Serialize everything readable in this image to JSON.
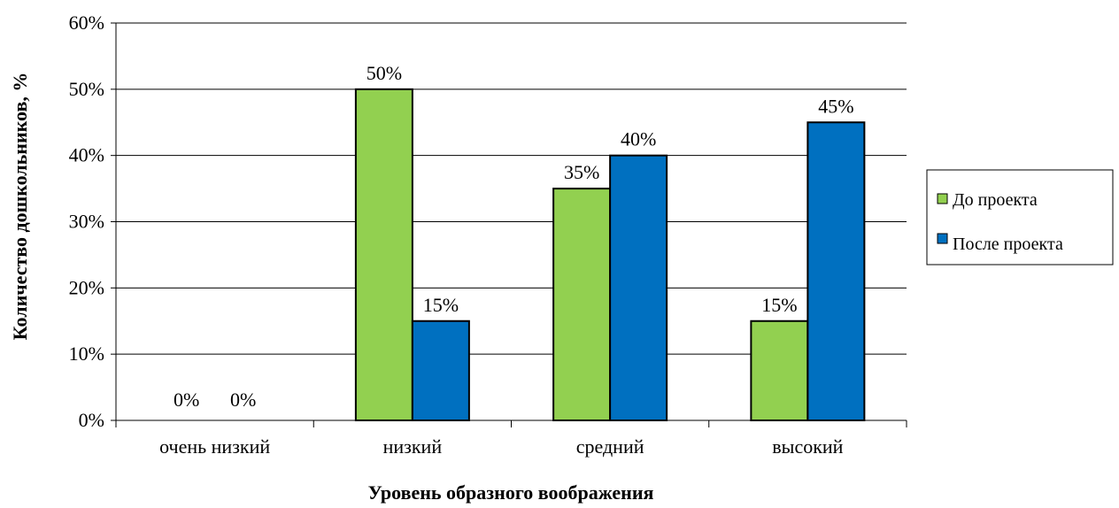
{
  "chart_data": {
    "type": "bar",
    "categories": [
      "очень низкий",
      "низкий",
      "средний",
      "высокий"
    ],
    "series": [
      {
        "name": "До проекта",
        "values": [
          0,
          50,
          35,
          15
        ],
        "color": "#92d050"
      },
      {
        "name": "После проекта",
        "values": [
          0,
          15,
          40,
          45
        ],
        "color": "#0070c0"
      }
    ],
    "data_labels": [
      [
        "0%",
        "50%",
        "35%",
        "15%"
      ],
      [
        "0%",
        "15%",
        "40%",
        "45%"
      ]
    ],
    "xlabel": "Уровень образного воображения",
    "ylabel": "Количество дошкольников, %",
    "ylim": [
      0,
      60
    ],
    "yticks": [
      0,
      10,
      20,
      30,
      40,
      50,
      60
    ],
    "ytick_labels": [
      "0%",
      "10%",
      "20%",
      "30%",
      "40%",
      "50%",
      "60%"
    ],
    "grid": true,
    "legend_position": "right"
  }
}
